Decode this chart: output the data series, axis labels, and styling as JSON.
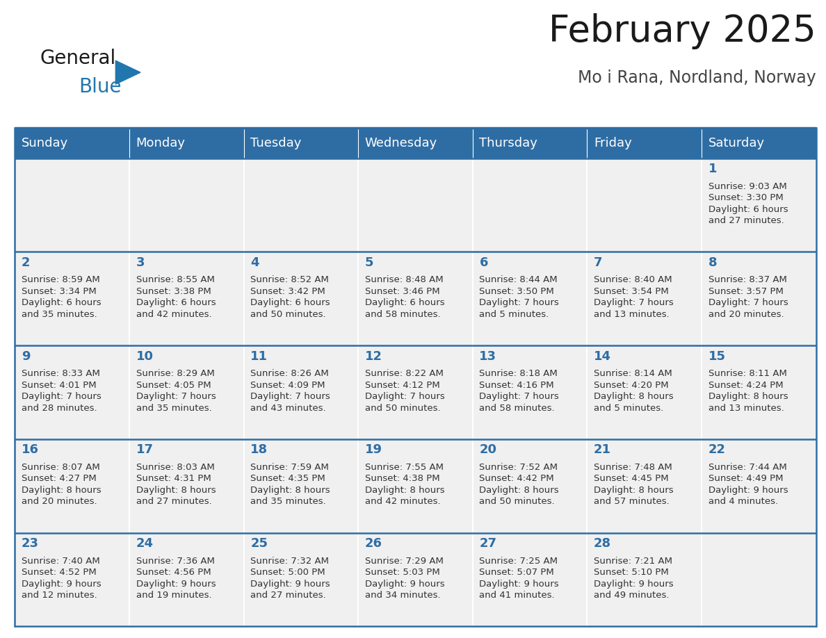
{
  "title": "February 2025",
  "subtitle": "Mo i Rana, Nordland, Norway",
  "header_bg": "#2E6DA4",
  "header_text_color": "#FFFFFF",
  "cell_bg": "#F0F0F0",
  "cell_bg_white": "#FFFFFF",
  "border_color": "#2E6DA4",
  "day_headers": [
    "Sunday",
    "Monday",
    "Tuesday",
    "Wednesday",
    "Thursday",
    "Friday",
    "Saturday"
  ],
  "days_data": [
    {
      "day": 1,
      "col": 6,
      "row": 0,
      "sunrise": "9:03 AM",
      "sunset": "3:30 PM",
      "daylight": "6 hours\nand 27 minutes."
    },
    {
      "day": 2,
      "col": 0,
      "row": 1,
      "sunrise": "8:59 AM",
      "sunset": "3:34 PM",
      "daylight": "6 hours\nand 35 minutes."
    },
    {
      "day": 3,
      "col": 1,
      "row": 1,
      "sunrise": "8:55 AM",
      "sunset": "3:38 PM",
      "daylight": "6 hours\nand 42 minutes."
    },
    {
      "day": 4,
      "col": 2,
      "row": 1,
      "sunrise": "8:52 AM",
      "sunset": "3:42 PM",
      "daylight": "6 hours\nand 50 minutes."
    },
    {
      "day": 5,
      "col": 3,
      "row": 1,
      "sunrise": "8:48 AM",
      "sunset": "3:46 PM",
      "daylight": "6 hours\nand 58 minutes."
    },
    {
      "day": 6,
      "col": 4,
      "row": 1,
      "sunrise": "8:44 AM",
      "sunset": "3:50 PM",
      "daylight": "7 hours\nand 5 minutes."
    },
    {
      "day": 7,
      "col": 5,
      "row": 1,
      "sunrise": "8:40 AM",
      "sunset": "3:54 PM",
      "daylight": "7 hours\nand 13 minutes."
    },
    {
      "day": 8,
      "col": 6,
      "row": 1,
      "sunrise": "8:37 AM",
      "sunset": "3:57 PM",
      "daylight": "7 hours\nand 20 minutes."
    },
    {
      "day": 9,
      "col": 0,
      "row": 2,
      "sunrise": "8:33 AM",
      "sunset": "4:01 PM",
      "daylight": "7 hours\nand 28 minutes."
    },
    {
      "day": 10,
      "col": 1,
      "row": 2,
      "sunrise": "8:29 AM",
      "sunset": "4:05 PM",
      "daylight": "7 hours\nand 35 minutes."
    },
    {
      "day": 11,
      "col": 2,
      "row": 2,
      "sunrise": "8:26 AM",
      "sunset": "4:09 PM",
      "daylight": "7 hours\nand 43 minutes."
    },
    {
      "day": 12,
      "col": 3,
      "row": 2,
      "sunrise": "8:22 AM",
      "sunset": "4:12 PM",
      "daylight": "7 hours\nand 50 minutes."
    },
    {
      "day": 13,
      "col": 4,
      "row": 2,
      "sunrise": "8:18 AM",
      "sunset": "4:16 PM",
      "daylight": "7 hours\nand 58 minutes."
    },
    {
      "day": 14,
      "col": 5,
      "row": 2,
      "sunrise": "8:14 AM",
      "sunset": "4:20 PM",
      "daylight": "8 hours\nand 5 minutes."
    },
    {
      "day": 15,
      "col": 6,
      "row": 2,
      "sunrise": "8:11 AM",
      "sunset": "4:24 PM",
      "daylight": "8 hours\nand 13 minutes."
    },
    {
      "day": 16,
      "col": 0,
      "row": 3,
      "sunrise": "8:07 AM",
      "sunset": "4:27 PM",
      "daylight": "8 hours\nand 20 minutes."
    },
    {
      "day": 17,
      "col": 1,
      "row": 3,
      "sunrise": "8:03 AM",
      "sunset": "4:31 PM",
      "daylight": "8 hours\nand 27 minutes."
    },
    {
      "day": 18,
      "col": 2,
      "row": 3,
      "sunrise": "7:59 AM",
      "sunset": "4:35 PM",
      "daylight": "8 hours\nand 35 minutes."
    },
    {
      "day": 19,
      "col": 3,
      "row": 3,
      "sunrise": "7:55 AM",
      "sunset": "4:38 PM",
      "daylight": "8 hours\nand 42 minutes."
    },
    {
      "day": 20,
      "col": 4,
      "row": 3,
      "sunrise": "7:52 AM",
      "sunset": "4:42 PM",
      "daylight": "8 hours\nand 50 minutes."
    },
    {
      "day": 21,
      "col": 5,
      "row": 3,
      "sunrise": "7:48 AM",
      "sunset": "4:45 PM",
      "daylight": "8 hours\nand 57 minutes."
    },
    {
      "day": 22,
      "col": 6,
      "row": 3,
      "sunrise": "7:44 AM",
      "sunset": "4:49 PM",
      "daylight": "9 hours\nand 4 minutes."
    },
    {
      "day": 23,
      "col": 0,
      "row": 4,
      "sunrise": "7:40 AM",
      "sunset": "4:52 PM",
      "daylight": "9 hours\nand 12 minutes."
    },
    {
      "day": 24,
      "col": 1,
      "row": 4,
      "sunrise": "7:36 AM",
      "sunset": "4:56 PM",
      "daylight": "9 hours\nand 19 minutes."
    },
    {
      "day": 25,
      "col": 2,
      "row": 4,
      "sunrise": "7:32 AM",
      "sunset": "5:00 PM",
      "daylight": "9 hours\nand 27 minutes."
    },
    {
      "day": 26,
      "col": 3,
      "row": 4,
      "sunrise": "7:29 AM",
      "sunset": "5:03 PM",
      "daylight": "9 hours\nand 34 minutes."
    },
    {
      "day": 27,
      "col": 4,
      "row": 4,
      "sunrise": "7:25 AM",
      "sunset": "5:07 PM",
      "daylight": "9 hours\nand 41 minutes."
    },
    {
      "day": 28,
      "col": 5,
      "row": 4,
      "sunrise": "7:21 AM",
      "sunset": "5:10 PM",
      "daylight": "9 hours\nand 49 minutes."
    }
  ],
  "n_rows": 5,
  "n_cols": 7,
  "logo_text_general": "General",
  "logo_text_blue": "Blue",
  "logo_color_general": "#1a1a1a",
  "logo_color_blue": "#2176AE",
  "logo_triangle_color": "#2176AE",
  "text_color_day_num": "#2E6DA4",
  "text_color_info": "#333333",
  "title_color": "#1a1a1a",
  "subtitle_color": "#444444",
  "title_fontsize": 38,
  "subtitle_fontsize": 17,
  "header_fontsize": 13,
  "day_num_fontsize": 13,
  "info_fontsize": 9.5
}
